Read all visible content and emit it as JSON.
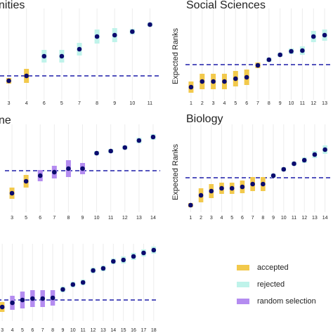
{
  "chart_data": [
    {
      "type": "dot-range",
      "title": "nities",
      "categories": [
        "3",
        "4",
        "6",
        "5",
        "7",
        "8",
        "9",
        "10",
        "11"
      ],
      "ylim": [
        0,
        12
      ],
      "hline": 3.2,
      "series": [
        {
          "name": "accepted",
          "color": "#f2c94c",
          "values": [
            2.5,
            3.2,
            null,
            null,
            null,
            null,
            null,
            null,
            null
          ],
          "errors": [
            0.4,
            1,
            null,
            null,
            null,
            null,
            null,
            null,
            null
          ]
        },
        {
          "name": "rejected",
          "color": "#bff3ea",
          "values": [
            null,
            null,
            6,
            6,
            7,
            8.8,
            9,
            9.5,
            10.5
          ],
          "errors": [
            null,
            null,
            0.9,
            0.9,
            0.9,
            1,
            1,
            0.4,
            0.3
          ]
        }
      ]
    },
    {
      "type": "dot-range",
      "title": "Social Sciences",
      "y_label": "Expected Ranks",
      "categories": [
        "1",
        "2",
        "3",
        "4",
        "5",
        "6",
        "7",
        "8",
        "9",
        "10",
        "11",
        "12",
        "13"
      ],
      "ylim": [
        0,
        12
      ],
      "hline": 4.8,
      "series": [
        {
          "name": "accepted",
          "color": "#f2c94c",
          "values": [
            1.6,
            2.4,
            2.4,
            2.4,
            2.8,
            3,
            4.7,
            null,
            null,
            null,
            null,
            null,
            null
          ],
          "errors": [
            0.8,
            1.1,
            1.1,
            1.1,
            1.1,
            1.1,
            0.4,
            null,
            null,
            null,
            null,
            null,
            null
          ]
        },
        {
          "name": "rejected",
          "color": "#bff3ea",
          "values": [
            null,
            null,
            null,
            null,
            null,
            null,
            null,
            5.5,
            6.2,
            6.7,
            6.8,
            8.8,
            9
          ],
          "errors": [
            null,
            null,
            null,
            null,
            null,
            null,
            null,
            0.3,
            0.3,
            0.4,
            0.6,
            0.8,
            0.8
          ]
        }
      ]
    },
    {
      "type": "dot-range",
      "title": "ne",
      "categories": [
        "3",
        "5",
        "6",
        "7",
        "8",
        "9",
        "10",
        "11",
        "12",
        "13",
        "14"
      ],
      "ylim": [
        0,
        11.5
      ],
      "hline": 5.7,
      "series": [
        {
          "name": "accepted",
          "color": "#f2c94c",
          "values": [
            2.5,
            4.2,
            null,
            null,
            null,
            null,
            null,
            null,
            null,
            null,
            null
          ],
          "errors": [
            0.8,
            0.9,
            null,
            null,
            null,
            null,
            null,
            null,
            null,
            null,
            null
          ]
        },
        {
          "name": "rejected",
          "color": "#bff3ea",
          "values": [
            null,
            null,
            null,
            null,
            null,
            null,
            8.2,
            8.5,
            9,
            10,
            10.5
          ],
          "errors": [
            null,
            null,
            null,
            null,
            null,
            null,
            0.3,
            0.3,
            0.3,
            0.4,
            0.4
          ]
        },
        {
          "name": "random selection",
          "color": "#b48cf0",
          "values": [
            null,
            null,
            5,
            5.5,
            6,
            6,
            null,
            null,
            null,
            null,
            null
          ],
          "errors": [
            null,
            null,
            0.8,
            0.9,
            1.2,
            0.8,
            null,
            null,
            null,
            null,
            null
          ]
        }
      ]
    },
    {
      "type": "dot-range",
      "title": "Biology",
      "y_label": "Expected Ranks",
      "categories": [
        "1",
        "2",
        "3",
        "4",
        "5",
        "6",
        "7",
        "8",
        "9",
        "10",
        "11",
        "12",
        "13",
        "14"
      ],
      "ylim": [
        0,
        11.5
      ],
      "hline": 4.7,
      "series": [
        {
          "name": "accepted",
          "color": "#f2c94c",
          "values": [
            0.8,
            2.2,
            2.8,
            3.2,
            3.2,
            3.4,
            3.8,
            3.8,
            null,
            null,
            null,
            null,
            null,
            null
          ],
          "errors": [
            0.3,
            1,
            1,
            0.8,
            0.8,
            0.9,
            1,
            1,
            null,
            null,
            null,
            null,
            null,
            null
          ]
        },
        {
          "name": "rejected",
          "color": "#bff3ea",
          "values": [
            null,
            null,
            null,
            null,
            null,
            null,
            null,
            null,
            5,
            5.9,
            6.7,
            7.2,
            8,
            8.7
          ],
          "errors": [
            null,
            null,
            null,
            null,
            null,
            null,
            null,
            null,
            0.3,
            0.3,
            0.3,
            0.4,
            0.5,
            0.6
          ]
        }
      ]
    },
    {
      "type": "dot-range",
      "categories": [
        "3",
        "4",
        "5",
        "6",
        "7",
        "8",
        "9",
        "10",
        "11",
        "12",
        "13",
        "14",
        "15",
        "16",
        "17",
        "18"
      ],
      "ylim": [
        0,
        10
      ],
      "hline": 2.8,
      "series": [
        {
          "name": "accepted",
          "color": "#f2c94c",
          "values": [
            1.8,
            null,
            null,
            null,
            null,
            null,
            null,
            null,
            null,
            null,
            null,
            null,
            null,
            null,
            null,
            null
          ],
          "errors": [
            0.7,
            null,
            null,
            null,
            null,
            null,
            null,
            null,
            null,
            null,
            null,
            null,
            null,
            null,
            null,
            null
          ]
        },
        {
          "name": "rejected",
          "color": "#bff3ea",
          "values": [
            null,
            null,
            null,
            null,
            null,
            null,
            4.3,
            5,
            5.3,
            7,
            7.3,
            8.3,
            8.5,
            9,
            9.5,
            9.9
          ],
          "errors": [
            null,
            null,
            null,
            null,
            null,
            null,
            0.4,
            0.4,
            0.4,
            0.4,
            0.4,
            0.4,
            0.5,
            0.5,
            0.5,
            0.5
          ]
        },
        {
          "name": "random selection",
          "color": "#b48cf0",
          "values": [
            null,
            2.4,
            2.8,
            3,
            3,
            3.1,
            null,
            null,
            null,
            null,
            null,
            null,
            null,
            null,
            null,
            null
          ],
          "errors": [
            null,
            1,
            1.2,
            1.2,
            1.2,
            1.1,
            null,
            null,
            null,
            null,
            null,
            null,
            null,
            null,
            null,
            null
          ]
        }
      ]
    }
  ]
}
